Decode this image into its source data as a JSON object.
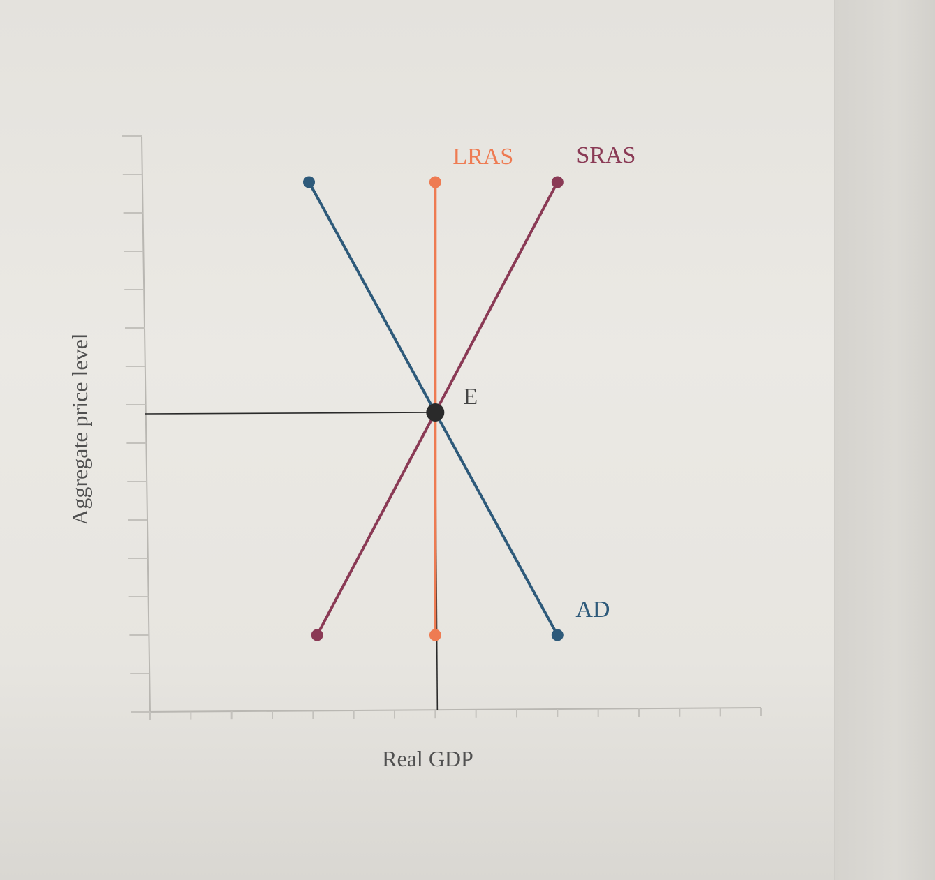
{
  "chart_data": {
    "type": "line",
    "title": "",
    "xlabel": "Real GDP",
    "ylabel": "Aggregate price level",
    "xlim": [
      0,
      15
    ],
    "ylim": [
      0,
      15
    ],
    "grid": false,
    "x_ticks": [
      0,
      1,
      2,
      3,
      4,
      5,
      6,
      7,
      8,
      9,
      10,
      11,
      12,
      13,
      14,
      15
    ],
    "y_ticks": [
      0,
      1,
      2,
      3,
      4,
      5,
      6,
      7,
      8,
      9,
      10,
      11,
      12,
      13,
      14,
      15
    ],
    "series": [
      {
        "name": "AD",
        "color": "#2e5a7a",
        "points": [
          [
            3.9,
            13.8
          ],
          [
            10,
            2
          ]
        ]
      },
      {
        "name": "LRAS",
        "color": "#ee7b52",
        "points": [
          [
            7,
            13.8
          ],
          [
            7,
            2
          ]
        ]
      },
      {
        "name": "SRAS",
        "color": "#8a3a55",
        "points": [
          [
            4.1,
            2
          ],
          [
            10,
            13.8
          ]
        ]
      }
    ],
    "equilibrium": {
      "label": "E",
      "x": 7,
      "y": 7.8,
      "color": "#2a2a2a"
    },
    "guide_line_color": "#2a2a2a"
  }
}
